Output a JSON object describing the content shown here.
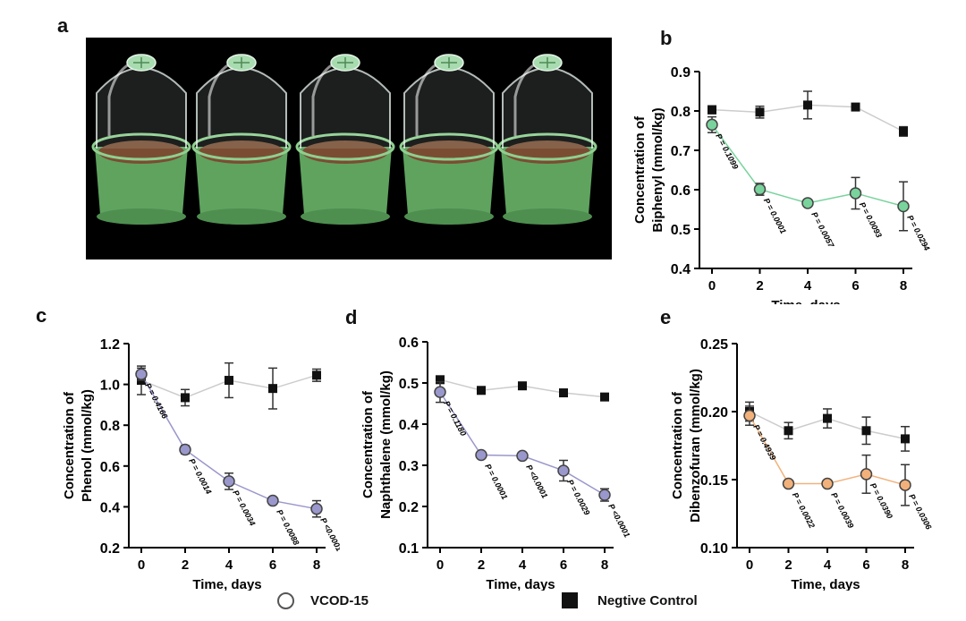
{
  "panels": {
    "a": "a",
    "b": "b",
    "c": "c",
    "d": "d",
    "e": "e"
  },
  "photo": {
    "alt": "Five green plastic microcosm containers with clear domed lids holding soil"
  },
  "legend": {
    "vcod": {
      "label": "VCOD-15",
      "icon": "open-circle-icon"
    },
    "control": {
      "label": "Negtive Control",
      "icon": "filled-square-icon"
    }
  },
  "colors": {
    "background": "#ffffff",
    "control": "#111111",
    "control_line": "#cccccc"
  },
  "chart_data": [
    {
      "id": "b",
      "type": "line",
      "ylabel": [
        "Concentration of",
        "Biphenyl (mmol/kg)"
      ],
      "xlabel": "Time, days",
      "x": [
        0,
        2,
        4,
        6,
        8
      ],
      "xticks": [
        "0",
        "2",
        "4",
        "6",
        "8"
      ],
      "ylim": [
        0.4,
        0.9
      ],
      "yticks": [
        "0.4",
        "0.5",
        "0.6",
        "0.7",
        "0.8",
        "0.9"
      ],
      "series": [
        {
          "name": "VCOD-15",
          "marker": "circle",
          "color": "#79d39c",
          "values": [
            0.765,
            0.601,
            0.566,
            0.591,
            0.558
          ],
          "errors": [
            0.02,
            0.015,
            0.005,
            0.04,
            0.062
          ]
        },
        {
          "name": "Negtive Control",
          "marker": "square",
          "color": "#111111",
          "values": [
            0.803,
            0.797,
            0.815,
            0.81,
            0.748
          ],
          "errors": [
            0.01,
            0.015,
            0.035,
            0.005,
            0.012
          ]
        }
      ],
      "pvalues": [
        "P = 0.1099",
        "P = 0.0001",
        "P = 0.0057",
        "P = 0.0093",
        "P = 0.0294"
      ]
    },
    {
      "id": "c",
      "type": "line",
      "ylabel": [
        "Concentration of",
        "Phenol (mmol/kg)"
      ],
      "xlabel": "Time, days",
      "x": [
        0,
        2,
        4,
        6,
        8
      ],
      "xticks": [
        "0",
        "2",
        "4",
        "6",
        "8"
      ],
      "ylim": [
        0.2,
        1.2
      ],
      "yticks": [
        "0.2",
        "0.4",
        "0.6",
        "0.8",
        "1.0",
        "1.2"
      ],
      "series": [
        {
          "name": "VCOD-15",
          "marker": "circle",
          "color": "#9a97cc",
          "values": [
            1.05,
            0.68,
            0.525,
            0.43,
            0.39
          ],
          "errors": [
            0.03,
            0.02,
            0.04,
            0.01,
            0.04
          ]
        },
        {
          "name": "Negtive Control",
          "marker": "square",
          "color": "#111111",
          "values": [
            1.02,
            0.935,
            1.02,
            0.98,
            1.045
          ],
          "errors": [
            0.07,
            0.04,
            0.085,
            0.1,
            0.03
          ]
        }
      ],
      "pvalues": [
        "P = 0.4166",
        "P = 0.0014",
        "P = 0.0034",
        "P = 0.0088",
        "P <0.0001"
      ]
    },
    {
      "id": "d",
      "type": "line",
      "ylabel": [
        "Concentration of",
        "Naphthalene (mmol/kg)"
      ],
      "xlabel": "Time, days",
      "x": [
        0,
        2,
        4,
        6,
        8
      ],
      "xticks": [
        "0",
        "2",
        "4",
        "6",
        "8"
      ],
      "ylim": [
        0.1,
        0.6
      ],
      "yticks": [
        "0.1",
        "0.2",
        "0.3",
        "0.4",
        "0.5",
        "0.6"
      ],
      "series": [
        {
          "name": "VCOD-15",
          "marker": "circle",
          "color": "#9a97cc",
          "values": [
            0.478,
            0.325,
            0.323,
            0.287,
            0.228
          ],
          "errors": [
            0.025,
            0.005,
            0.005,
            0.025,
            0.015
          ]
        },
        {
          "name": "Negtive Control",
          "marker": "square",
          "color": "#111111",
          "values": [
            0.508,
            0.482,
            0.493,
            0.476,
            0.466
          ],
          "errors": [
            0.005,
            0.005,
            0.005,
            0.005,
            0.005
          ]
        }
      ],
      "pvalues": [
        "P = 0.1180",
        "P = 0.0001",
        "P <0.0001",
        "P = 0.0029",
        "P <0.0001"
      ]
    },
    {
      "id": "e",
      "type": "line",
      "ylabel": [
        "Concentration of",
        "Dibenzofuran (mmol/kg)"
      ],
      "xlabel": "Time, days",
      "x": [
        0,
        2,
        4,
        6,
        8
      ],
      "xticks": [
        "0",
        "2",
        "4",
        "6",
        "8"
      ],
      "ylim": [
        0.1,
        0.25
      ],
      "yticks": [
        "0.10",
        "0.15",
        "0.20",
        "0.25"
      ],
      "series": [
        {
          "name": "VCOD-15",
          "marker": "circle",
          "color": "#f2b17a",
          "values": [
            0.197,
            0.147,
            0.147,
            0.154,
            0.146
          ],
          "errors": [
            0.007,
            0.002,
            0.002,
            0.014,
            0.015
          ]
        },
        {
          "name": "Negtive Control",
          "marker": "square",
          "color": "#111111",
          "values": [
            0.2,
            0.186,
            0.195,
            0.186,
            0.18
          ],
          "errors": [
            0.007,
            0.006,
            0.007,
            0.01,
            0.009
          ]
        }
      ],
      "pvalues": [
        "P = 0.4939",
        "P = 0.0022",
        "P = 0.0039",
        "P = 0.0390",
        "P = 0.0306"
      ]
    }
  ]
}
